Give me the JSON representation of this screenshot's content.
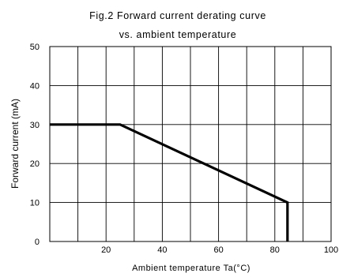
{
  "chart_data": {
    "type": "line",
    "title": [
      "Fig.2  Forward current derating curve",
      "vs. ambient temperature"
    ],
    "xlabel": "Ambient temperature Ta(°C)",
    "ylabel": "Forward current (mA)",
    "xlim": [
      0,
      100
    ],
    "ylim": [
      0,
      50
    ],
    "xticks": [
      20,
      40,
      60,
      80,
      100
    ],
    "yticks": [
      0,
      10,
      20,
      30,
      40,
      50
    ],
    "grid_x": [
      10,
      20,
      30,
      40,
      50,
      60,
      70,
      80,
      90
    ],
    "grid_y": [
      10,
      20,
      30,
      40
    ],
    "grid": true,
    "series": [
      {
        "x": [
          0,
          25,
          84.5,
          84.5
        ],
        "y": [
          30,
          30,
          10,
          0
        ],
        "color": "#000000"
      }
    ]
  }
}
